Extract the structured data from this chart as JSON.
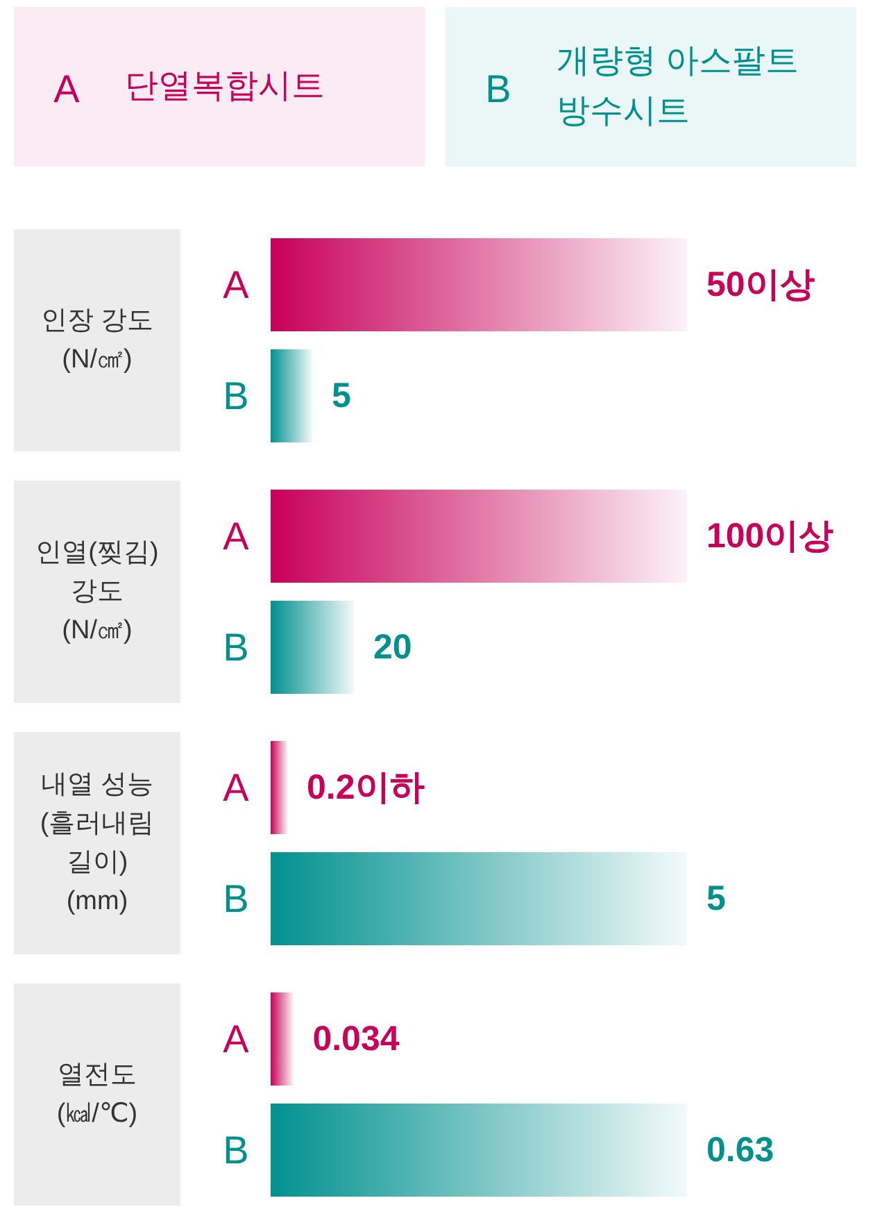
{
  "chart_data": [
    {
      "type": "other",
      "categories": [
        "A",
        "B"
      ],
      "annotations": [
        "단열복합시트",
        "개량형 아스팔트\n방수시트"
      ],
      "colors": [
        "#c8005a",
        "#00918f"
      ]
    },
    {
      "type": "bar",
      "orientation": "horizontal",
      "title": "인장 강도\n(N/㎠)",
      "categories": [
        "A",
        "B"
      ],
      "values": [
        50,
        5
      ],
      "colors": [
        "#c8005a",
        "#00918f"
      ],
      "value_labels": [
        "50이상",
        "5"
      ]
    },
    {
      "type": "bar",
      "orientation": "horizontal",
      "title": "인열(찢김)\n강도\n(N/㎠)",
      "categories": [
        "A",
        "B"
      ],
      "values": [
        100,
        20
      ],
      "colors": [
        "#c8005a",
        "#00918f"
      ],
      "value_labels": [
        "100이상",
        "20"
      ]
    },
    {
      "type": "bar",
      "orientation": "horizontal",
      "title": "내열 성능\n(흘러내림\n길이)\n(mm)",
      "categories": [
        "A",
        "B"
      ],
      "values": [
        0.2,
        5
      ],
      "colors": [
        "#c8005a",
        "#00918f"
      ],
      "value_labels": [
        "0.2이하",
        "5"
      ]
    },
    {
      "type": "bar",
      "orientation": "horizontal",
      "title": "열전도\n(㎉/℃)",
      "categories": [
        "A",
        "B"
      ],
      "values": [
        0.034,
        0.63
      ],
      "colors": [
        "#c8005a",
        "#00918f"
      ],
      "value_labels": [
        "0.034",
        "0.63"
      ]
    }
  ]
}
